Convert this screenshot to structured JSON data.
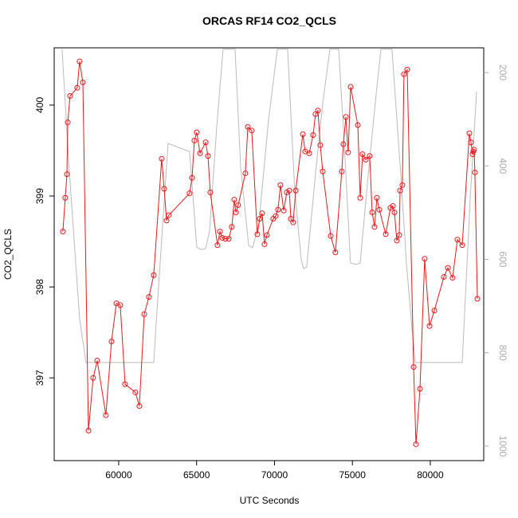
{
  "chart_data": {
    "type": "line",
    "title": "ORCAS RF14 CO2_QCLS",
    "x_label": "UTC Seconds",
    "y_label": "CO2_QCLS",
    "xlim": [
      55860,
      83430
    ],
    "ylim": [
      396.09,
      400.63
    ],
    "y2lim": [
      1031,
      147
    ],
    "xticks": [
      60000,
      65000,
      70000,
      75000,
      80000
    ],
    "yticks": [
      397,
      398,
      399,
      400
    ],
    "y2ticks": [
      200,
      400,
      600,
      800,
      1000
    ],
    "y2_color": "#aaaaaa",
    "series": [
      {
        "color": "#bbbbbb",
        "axis": "y2",
        "marker": false,
        "x": [
          56368,
          56780,
          57240,
          57490,
          57900,
          58260,
          62250,
          62460,
          63170,
          64550,
          65010,
          65270,
          65580,
          65830,
          66290,
          66700,
          67470,
          67830,
          68340,
          68590,
          69000,
          69620,
          70180,
          70840,
          71300,
          71710,
          71870,
          72070,
          72630,
          73090,
          73560,
          74120,
          74480,
          74880,
          75240,
          75500,
          76060,
          76570,
          76830,
          77540,
          78110,
          78470,
          78770,
          79030,
          82050,
          82560,
          82970
        ],
        "values": [
          150,
          386,
          608,
          727,
          821,
          821,
          821,
          710,
          352,
          369,
          574,
          579,
          577,
          540,
          318,
          150,
          150,
          403,
          570,
          575,
          523,
          301,
          150,
          150,
          454,
          599,
          620,
          616,
          417,
          267,
          150,
          150,
          352,
          608,
          611,
          608,
          403,
          232,
          150,
          150,
          420,
          608,
          727,
          821,
          821,
          471,
          241
        ]
      },
      {
        "color": "#e8191c",
        "marker": true,
        "x": [
          56420,
          56570,
          56680,
          56730,
          56880,
          57340,
          57490,
          57700,
          58060,
          58360,
          58620,
          59180,
          59540,
          59850,
          60100,
          60410,
          61070,
          61330,
          61640,
          61940,
          62250,
          62760,
          62920,
          63070,
          63220,
          64550,
          64710,
          64860,
          65010,
          65220,
          65580,
          65730,
          65880,
          66340,
          66500,
          66650,
          66850,
          67060,
          67260,
          67420,
          67520,
          67670,
          68130,
          68290,
          68540,
          68900,
          69050,
          69210,
          69360,
          69510,
          69920,
          70080,
          70230,
          70380,
          70590,
          70790,
          70950,
          71050,
          71200,
          71360,
          71820,
          71970,
          72230,
          72480,
          72630,
          72790,
          72940,
          73100,
          73610,
          73910,
          74320,
          74420,
          74580,
          74730,
          74890,
          75350,
          75500,
          75650,
          75860,
          76110,
          76270,
          76420,
          76570,
          76730,
          77140,
          77440,
          77600,
          77700,
          77850,
          78010,
          78060,
          78210,
          78310,
          78520,
          78930,
          79080,
          79340,
          79640,
          79950,
          80260,
          80870,
          81130,
          81430,
          81740,
          82050,
          82510,
          82610,
          82710,
          82760,
          82810,
          82860,
          83020
        ],
        "values": [
          398.61,
          398.98,
          399.24,
          399.81,
          400.1,
          400.19,
          400.48,
          400.25,
          396.42,
          397.0,
          397.19,
          396.59,
          397.4,
          397.82,
          397.8,
          396.93,
          396.84,
          396.69,
          397.7,
          397.89,
          398.13,
          399.41,
          399.08,
          398.73,
          398.79,
          399.03,
          399.2,
          399.61,
          399.7,
          399.47,
          399.59,
          399.44,
          399.04,
          398.46,
          398.61,
          398.54,
          398.53,
          398.53,
          398.66,
          398.96,
          398.82,
          398.9,
          399.25,
          399.76,
          399.72,
          398.58,
          398.75,
          398.81,
          398.47,
          398.57,
          398.75,
          398.78,
          398.85,
          399.12,
          398.84,
          399.04,
          399.06,
          398.75,
          398.71,
          399.06,
          399.68,
          399.49,
          399.47,
          399.67,
          399.9,
          399.94,
          399.56,
          399.27,
          398.56,
          398.38,
          399.27,
          399.57,
          399.87,
          399.48,
          400.2,
          399.78,
          398.98,
          399.46,
          399.4,
          399.44,
          398.82,
          398.66,
          398.98,
          398.85,
          398.58,
          398.87,
          398.89,
          398.82,
          398.51,
          398.57,
          399.06,
          399.12,
          400.34,
          400.39,
          397.12,
          396.27,
          396.88,
          398.31,
          397.57,
          397.74,
          398.11,
          398.21,
          398.1,
          398.52,
          398.46,
          399.69,
          399.59,
          399.46,
          399.49,
          399.51,
          399.26,
          397.87
        ]
      }
    ]
  }
}
